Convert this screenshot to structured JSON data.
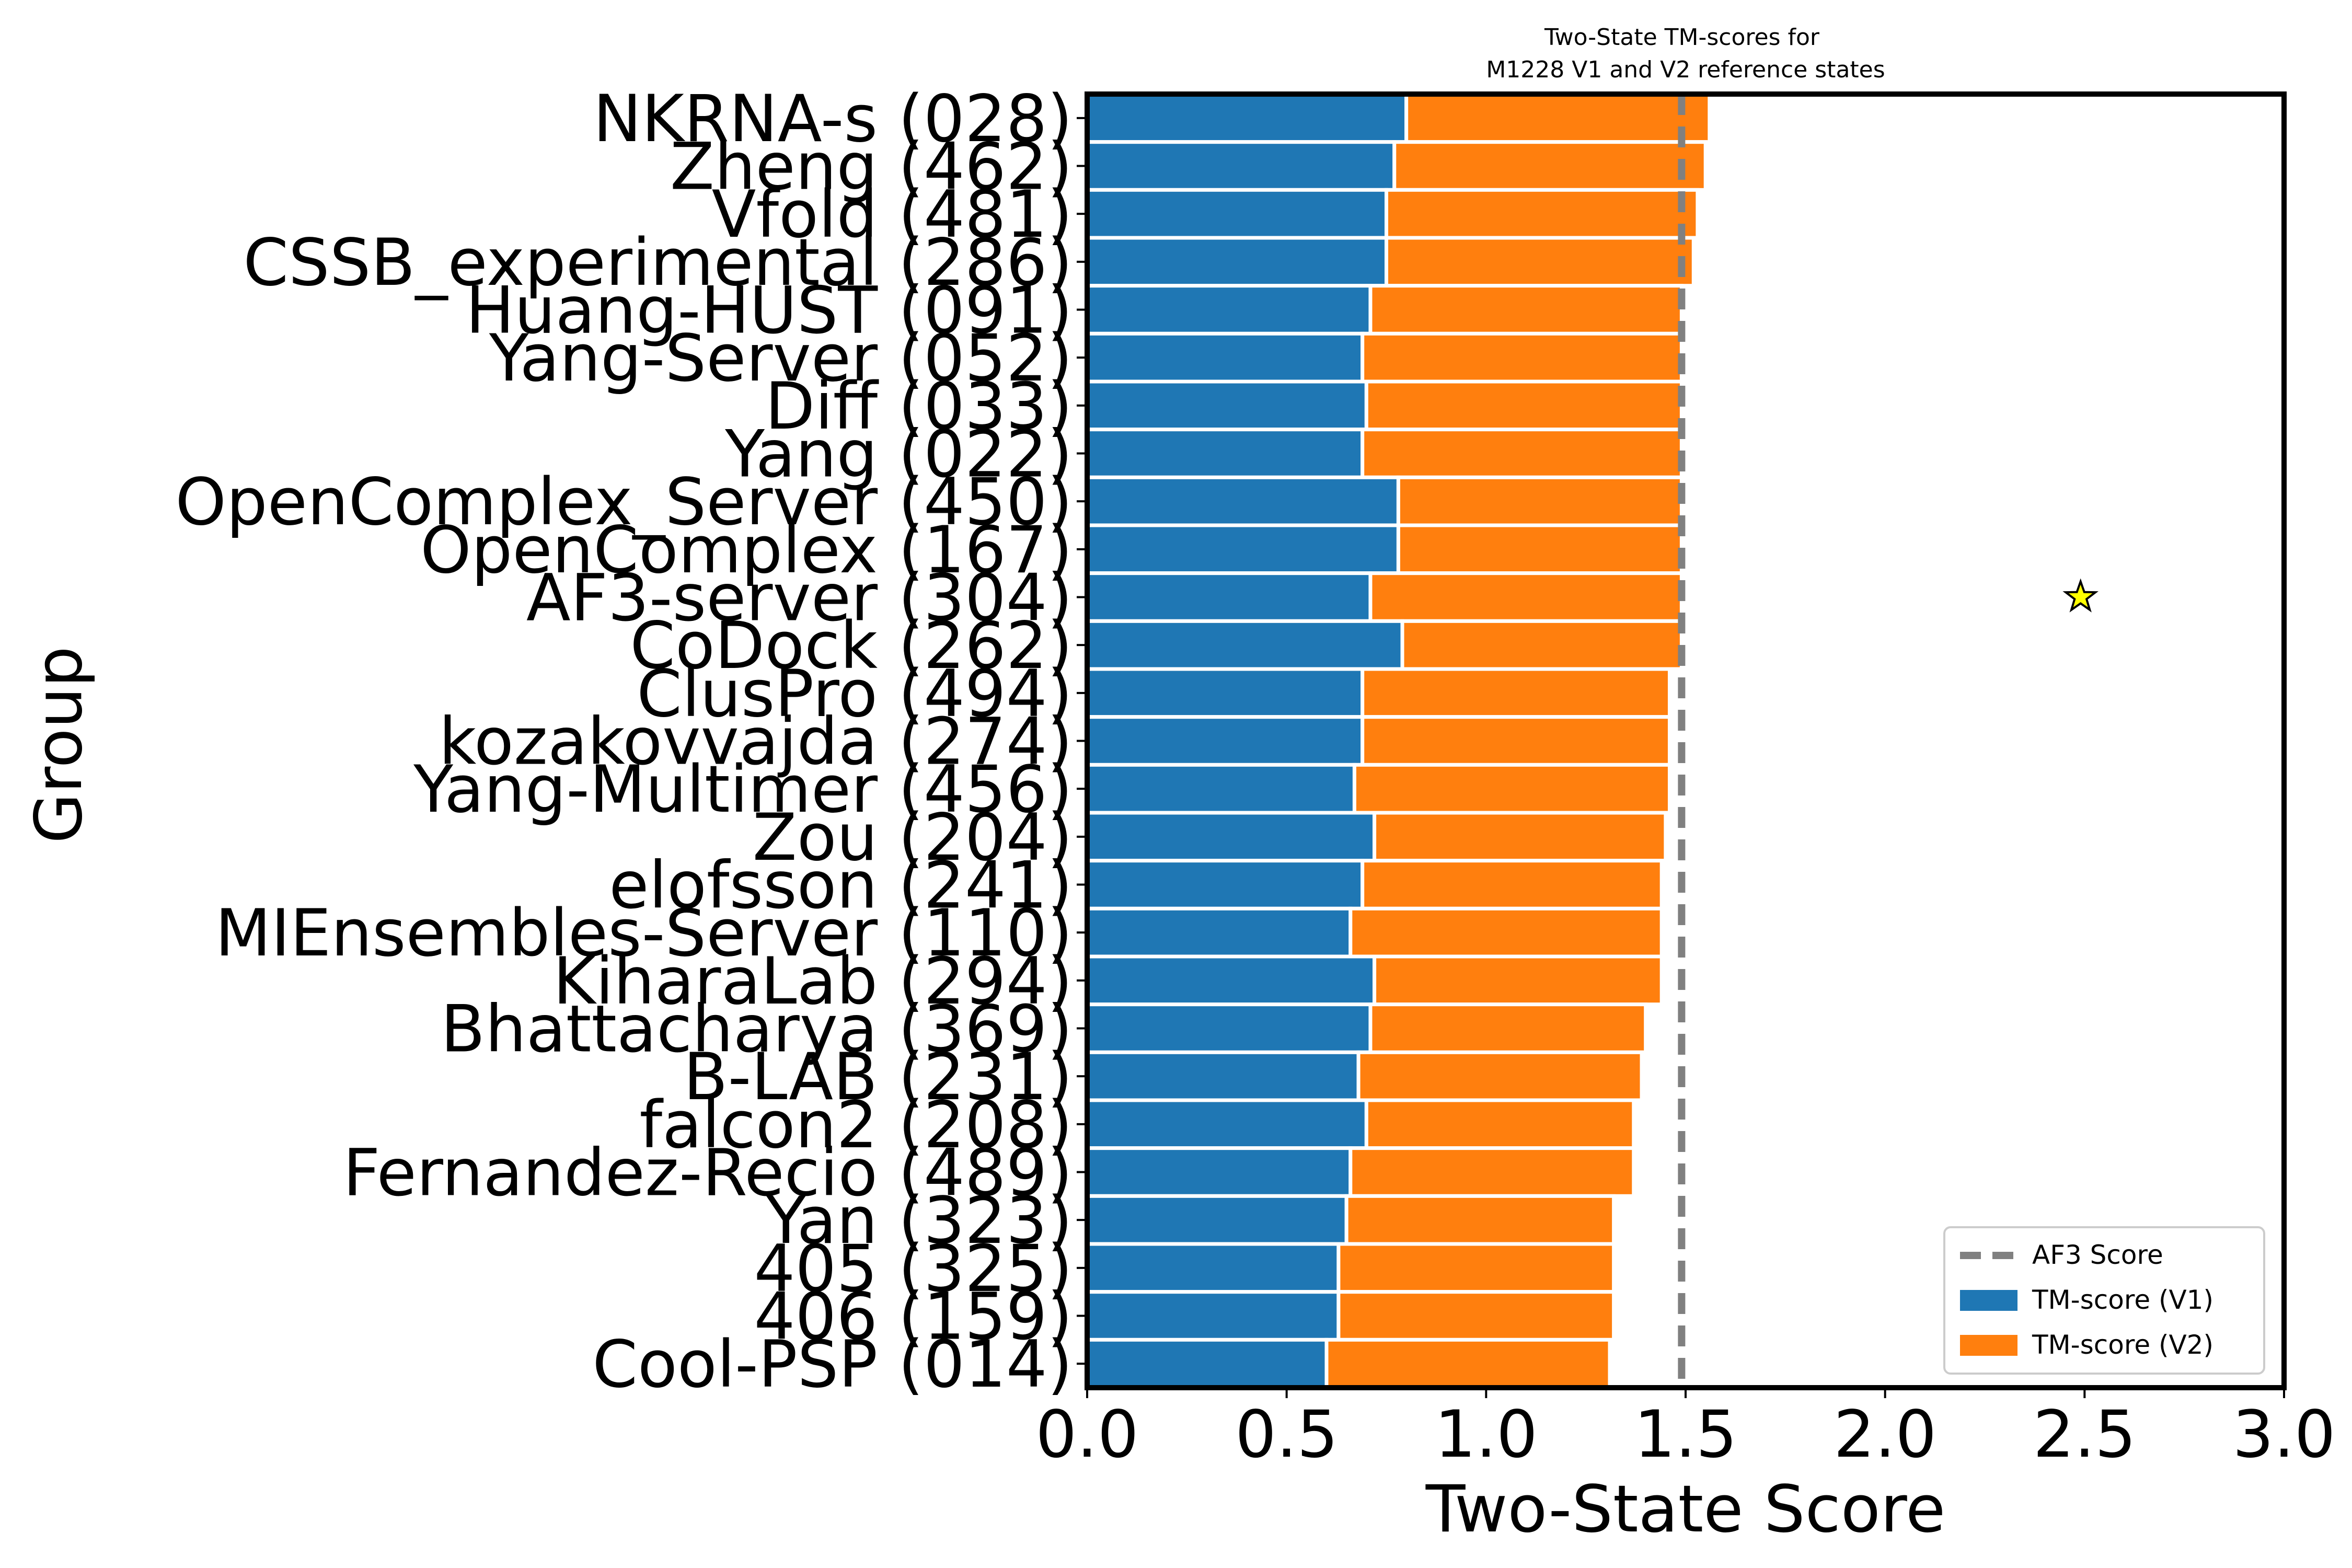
{
  "chart_data": {
    "type": "bar",
    "orientation": "horizontal",
    "stacked": true,
    "title": "Two-State TM-scores for\nM1228 V1 and V2 reference states",
    "xlabel": "Two-State Score",
    "ylabel": "Group",
    "xlim": [
      0,
      3
    ],
    "xticks": [
      "0.0",
      "0.5",
      "1.0",
      "1.5",
      "2.0",
      "2.5",
      "3.0"
    ],
    "grid": false,
    "legend_position": "bottom-right",
    "categories": [
      "NKRNA-s (028)",
      "Zheng (462)",
      "Vfold (481)",
      "CSSB_experimental (286)",
      "Huang-HUST (091)",
      "Yang-Server (052)",
      "Diff (033)",
      "Yang (022)",
      "OpenComplex_Server (450)",
      "OpenComplex (167)",
      "AF3-server (304)",
      "CoDock (262)",
      "ClusPro (494)",
      "kozakovvajda (274)",
      "Yang-Multimer (456)",
      "Zou (204)",
      "elofsson (241)",
      "MIEnsembles-Server (110)",
      "KiharaLab (294)",
      "Bhattacharya (369)",
      "B-LAB (231)",
      "falcon2 (208)",
      "Fernandez-Recio (489)",
      "Yan (323)",
      "405 (325)",
      "406 (159)",
      "Cool-PSP (014)"
    ],
    "series": [
      {
        "name": "TM-score (V1)",
        "color": "#1f77b4",
        "values": [
          0.8,
          0.77,
          0.75,
          0.75,
          0.71,
          0.69,
          0.7,
          0.69,
          0.78,
          0.78,
          0.71,
          0.79,
          0.69,
          0.69,
          0.67,
          0.72,
          0.69,
          0.66,
          0.72,
          0.71,
          0.68,
          0.7,
          0.66,
          0.65,
          0.63,
          0.63,
          0.6
        ]
      },
      {
        "name": "TM-score (V2)",
        "color": "#ff7f0e",
        "values": [
          0.76,
          0.78,
          0.78,
          0.77,
          0.78,
          0.8,
          0.79,
          0.8,
          0.71,
          0.71,
          0.78,
          0.7,
          0.77,
          0.77,
          0.79,
          0.73,
          0.75,
          0.78,
          0.72,
          0.69,
          0.71,
          0.67,
          0.71,
          0.67,
          0.69,
          0.69,
          0.71
        ]
      }
    ],
    "reference_line": {
      "name": "AF3 Score",
      "x": 1.49,
      "color": "#808080",
      "style": "dashed"
    },
    "marker": {
      "shape": "star",
      "x": 2.49,
      "category": "AF3-server (304)",
      "color": "#ffff00"
    }
  }
}
